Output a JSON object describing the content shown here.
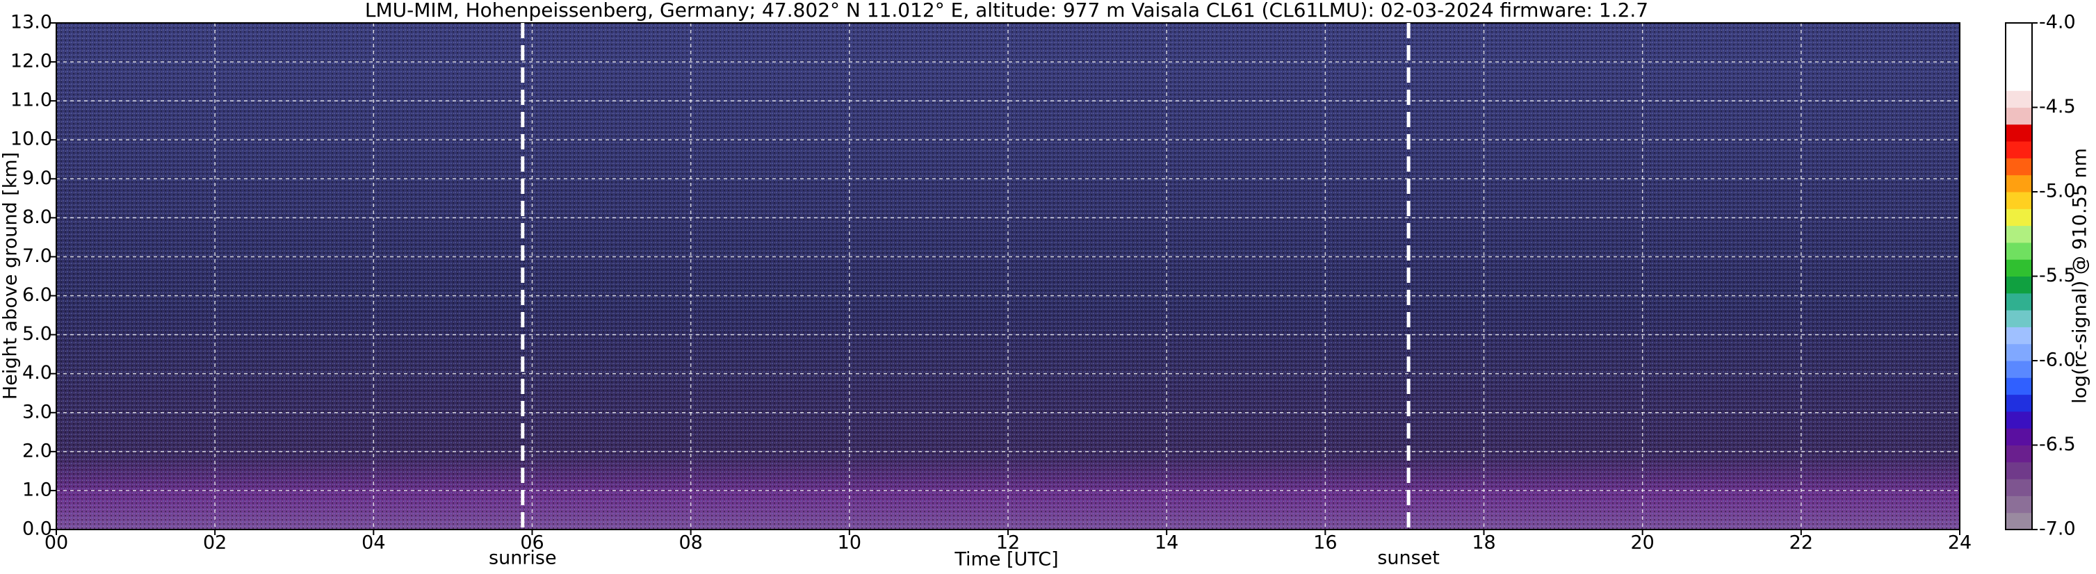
{
  "chart_data": {
    "type": "heatmap",
    "title": "LMU-MIM, Hohenpeissenberg, Germany; 47.802° N 11.012° E, altitude: 977 m    Vaisala CL61 (CL61LMU): 02-03-2024    firmware: 1.2.7",
    "x_label": "Time [UTC]",
    "y_label": "Height above ground [km]",
    "colorbar_label": "log(rc-signal) @ 910.55 nm",
    "xlim": [
      0,
      24
    ],
    "xticks": [
      {
        "value": 0,
        "label": "00"
      },
      {
        "value": 2,
        "label": "02"
      },
      {
        "value": 4,
        "label": "04"
      },
      {
        "value": 6,
        "label": "06"
      },
      {
        "value": 8,
        "label": "08"
      },
      {
        "value": 10,
        "label": "10"
      },
      {
        "value": 12,
        "label": "12"
      },
      {
        "value": 14,
        "label": "14"
      },
      {
        "value": 16,
        "label": "16"
      },
      {
        "value": 18,
        "label": "18"
      },
      {
        "value": 20,
        "label": "20"
      },
      {
        "value": 22,
        "label": "22"
      },
      {
        "value": 24,
        "label": "24"
      }
    ],
    "ylim": [
      0,
      13
    ],
    "yticks": [
      {
        "value": 0,
        "label": "0.0"
      },
      {
        "value": 1,
        "label": "1.0"
      },
      {
        "value": 2,
        "label": "2.0"
      },
      {
        "value": 3,
        "label": "3.0"
      },
      {
        "value": 4,
        "label": "4.0"
      },
      {
        "value": 5,
        "label": "5.0"
      },
      {
        "value": 6,
        "label": "6.0"
      },
      {
        "value": 7,
        "label": "7.0"
      },
      {
        "value": 8,
        "label": "8.0"
      },
      {
        "value": 9,
        "label": "9.0"
      },
      {
        "value": 10,
        "label": "10.0"
      },
      {
        "value": 11,
        "label": "11.0"
      },
      {
        "value": 12,
        "label": "12.0"
      },
      {
        "value": 13,
        "label": "13.0"
      }
    ],
    "clim": [
      -7,
      -4
    ],
    "cticks": [
      {
        "value": -4,
        "label": "-4.0"
      },
      {
        "value": -4.5,
        "label": "-4.5"
      },
      {
        "value": -5,
        "label": "-5.0"
      },
      {
        "value": -5.5,
        "label": "-5.5"
      },
      {
        "value": -6,
        "label": "-6.0"
      },
      {
        "value": -6.5,
        "label": "-6.5"
      },
      {
        "value": -7,
        "label": "-7.0"
      }
    ],
    "colormap": [
      "#9a8aa0",
      "#8c6f98",
      "#7e5590",
      "#703a8a",
      "#6a1f8e",
      "#5a0fa0",
      "#3a10c0",
      "#2030e0",
      "#3060ff",
      "#5a88ff",
      "#80a8ff",
      "#9fc0ff",
      "#70c8c8",
      "#30b090",
      "#10a040",
      "#30c030",
      "#70e060",
      "#b0f080",
      "#f0f040",
      "#ffd020",
      "#ffa010",
      "#ff6010",
      "#ff2010",
      "#e00000",
      "#f0c0c0",
      "#f8e0e0",
      "#ffffff",
      "#ffffff",
      "#ffffff",
      "#ffffff"
    ],
    "grid": true,
    "annotations": [
      {
        "text": "sunrise",
        "x": 5.88
      },
      {
        "text": "sunset",
        "x": 17.05
      }
    ]
  }
}
